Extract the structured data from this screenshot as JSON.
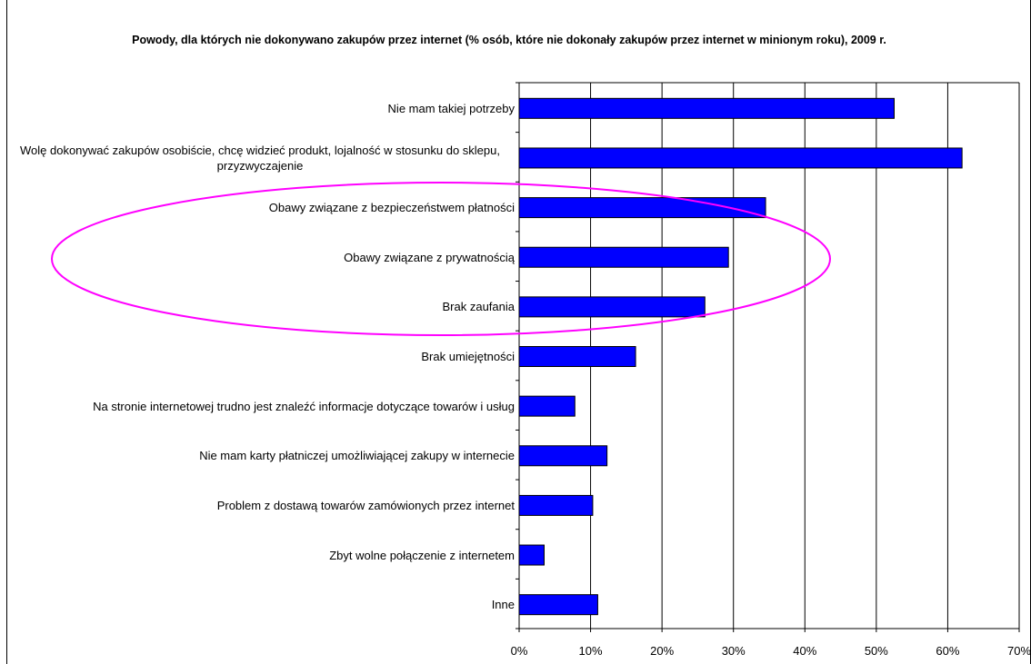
{
  "chart_data": {
    "type": "bar",
    "orientation": "horizontal",
    "title": "Powody, dla których nie dokonywano zakupów przez internet (% osób, które nie dokonały zakupów przez internet w minionym roku), 2009 r.",
    "categories": [
      "Nie mam takiej potrzeby",
      "Wolę dokonywać zakupów osobiście, chcę widzieć produkt, lojalność w stosunku do sklepu, przyzwyczajenie",
      "Obawy związane z bezpieczeństwem płatności",
      "Obawy związane z prywatnością",
      "Brak zaufania",
      "Brak umiejętności",
      "Na stronie internetowej trudno jest znaleźć informacje dotyczące towarów i usług",
      "Nie mam karty płatniczej umożliwiającej zakupy w internecie",
      "Problem z dostawą towarów zamówionych przez internet",
      "Zbyt wolne połączenie z internetem",
      "Inne"
    ],
    "values": [
      52.5,
      62,
      34.5,
      29.3,
      26,
      16.3,
      7.8,
      12.3,
      10.3,
      3.5,
      11
    ],
    "xlim": [
      0,
      70
    ],
    "x_ticks": [
      "0%",
      "10%",
      "20%",
      "30%",
      "40%",
      "50%",
      "60%",
      "70%"
    ],
    "grid": "vertical",
    "bar_color": "#0000ff",
    "annotation_color": "#ff00ff",
    "annotation": "ellipse around categories 3-5"
  }
}
